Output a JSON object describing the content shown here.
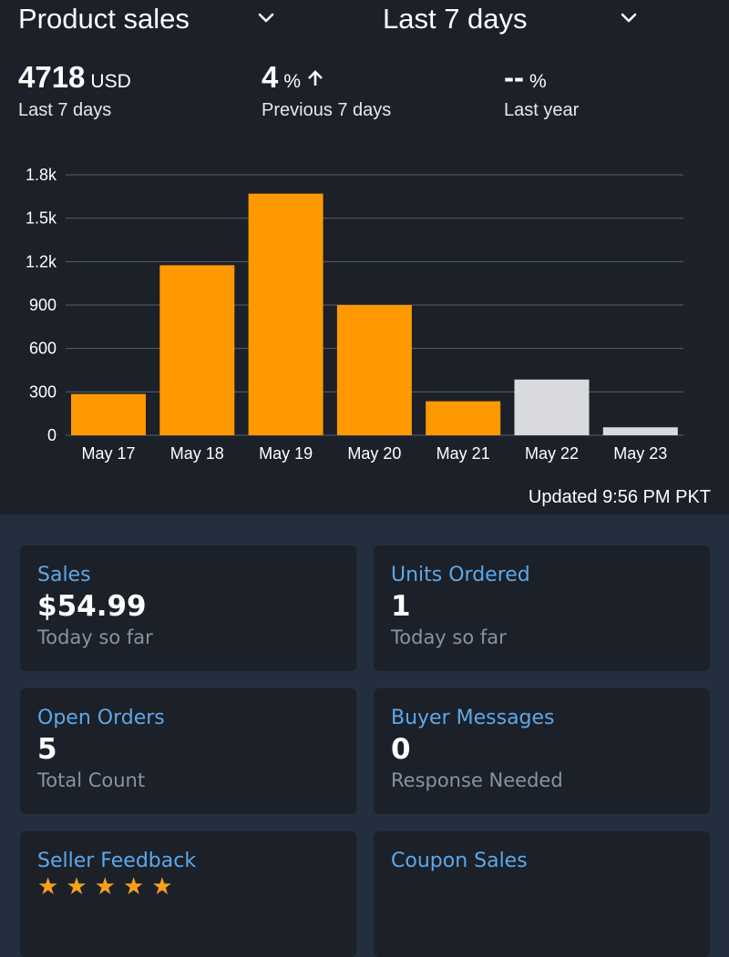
{
  "header": {
    "metric_selector": "Product sales",
    "range_selector": "Last 7 days"
  },
  "stats": [
    {
      "value": "4718",
      "unit": "USD",
      "caption": "Last 7 days"
    },
    {
      "value": "4",
      "unit": "%",
      "caption": "Previous 7 days",
      "trend": "up"
    },
    {
      "value": "--",
      "unit": "%",
      "caption": "Last year"
    }
  ],
  "chart_data": {
    "type": "bar",
    "categories": [
      "May 17",
      "May 18",
      "May 19",
      "May 20",
      "May 21",
      "May 22",
      "May 23"
    ],
    "values": [
      285,
      1175,
      1670,
      900,
      235,
      385,
      55
    ],
    "highlight": [
      true,
      true,
      true,
      true,
      true,
      false,
      false
    ],
    "yticks": [
      "0",
      "300",
      "600",
      "900",
      "1.2k",
      "1.5k",
      "1.8k"
    ],
    "ylim": [
      0,
      1800
    ],
    "grid": true,
    "colors": {
      "primary": "#ff9900",
      "secondary": "#d8dadd",
      "grid": "#5a6069"
    }
  },
  "updated": "Updated 9:56 PM PKT",
  "cards": [
    {
      "title": "Sales",
      "value": "$54.99",
      "sub": "Today so far"
    },
    {
      "title": "Units Ordered",
      "value": "1",
      "sub": "Today so far"
    },
    {
      "title": "Open Orders",
      "value": "5",
      "sub": "Total Count"
    },
    {
      "title": "Buyer Messages",
      "value": "0",
      "sub": "Response Needed"
    },
    {
      "title": "Seller Feedback",
      "stars": 5
    },
    {
      "title": "Coupon Sales"
    }
  ],
  "colors": {
    "accent": "#5ea8e8",
    "panel": "#1b2029",
    "page": "#232f3e",
    "bar": "#ff9900"
  }
}
